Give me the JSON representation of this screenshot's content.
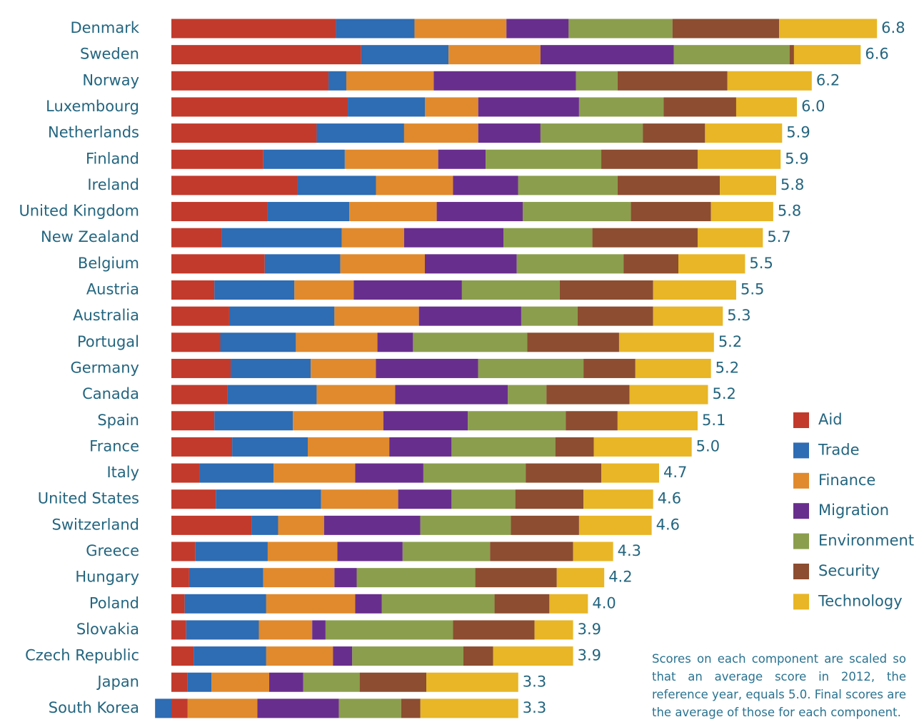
{
  "chart_data": {
    "type": "stacked-bar-horizontal",
    "categories": [
      "Denmark",
      "Sweden",
      "Norway",
      "Luxembourg",
      "Netherlands",
      "Finland",
      "Ireland",
      "United Kingdom",
      "New Zealand",
      "Belgium",
      "Austria",
      "Australia",
      "Portugal",
      "Germany",
      "Canada",
      "Spain",
      "France",
      "Italy",
      "United States",
      "Switzerland",
      "Greece",
      "Hungary",
      "Poland",
      "Slovakia",
      "Czech Republic",
      "Japan",
      "South Korea"
    ],
    "series": [
      {
        "name": "Aid",
        "color": "#c23a2c",
        "values": [
          11.1,
          12.8,
          10.6,
          11.9,
          9.8,
          6.2,
          8.5,
          6.5,
          3.4,
          6.3,
          2.9,
          3.9,
          3.3,
          4.0,
          3.8,
          2.9,
          4.1,
          1.9,
          3.0,
          5.4,
          1.6,
          1.2,
          0.9,
          1.0,
          1.5,
          1.1,
          1.1
        ]
      },
      {
        "name": "Trade",
        "color": "#2e6cb3",
        "values": [
          5.3,
          5.9,
          1.2,
          5.2,
          5.9,
          5.5,
          5.3,
          5.5,
          8.1,
          5.1,
          5.4,
          7.1,
          5.1,
          5.4,
          6.0,
          5.3,
          5.1,
          5.0,
          7.1,
          1.8,
          4.9,
          5.0,
          5.5,
          4.9,
          4.9,
          1.6,
          -1.1
        ]
      },
      {
        "name": "Finance",
        "color": "#e08a2d",
        "values": [
          6.2,
          6.2,
          5.9,
          3.6,
          5.0,
          6.3,
          5.2,
          5.9,
          4.2,
          5.7,
          4.0,
          5.7,
          5.5,
          4.4,
          5.3,
          6.1,
          5.5,
          5.5,
          5.2,
          3.1,
          4.7,
          4.8,
          6.0,
          3.6,
          4.5,
          3.9,
          4.7
        ]
      },
      {
        "name": "Migration",
        "color": "#682e8d",
        "values": [
          4.2,
          9.0,
          9.6,
          6.8,
          4.2,
          3.2,
          4.4,
          5.8,
          6.7,
          6.2,
          7.3,
          6.9,
          2.4,
          6.9,
          7.6,
          5.7,
          4.2,
          4.6,
          3.6,
          6.5,
          4.4,
          1.5,
          1.8,
          0.9,
          1.3,
          2.3,
          5.5
        ]
      },
      {
        "name": "Environment",
        "color": "#8b9e4d",
        "values": [
          7.0,
          7.8,
          2.8,
          5.7,
          6.9,
          7.8,
          6.7,
          7.3,
          6.0,
          7.2,
          6.6,
          3.8,
          7.7,
          7.1,
          2.6,
          6.6,
          7.0,
          6.9,
          4.3,
          6.1,
          5.9,
          8.0,
          7.6,
          8.6,
          7.5,
          3.8,
          4.2
        ]
      },
      {
        "name": "Security",
        "color": "#8c4d30",
        "values": [
          7.2,
          0.3,
          7.4,
          4.9,
          4.2,
          6.5,
          6.9,
          5.4,
          7.1,
          3.7,
          6.3,
          5.1,
          6.2,
          3.5,
          5.6,
          3.5,
          2.6,
          5.1,
          4.6,
          4.6,
          5.6,
          5.5,
          3.7,
          5.5,
          2.0,
          4.5,
          1.3
        ]
      },
      {
        "name": "Technology",
        "color": "#e8b626",
        "values": [
          6.6,
          4.5,
          5.7,
          4.1,
          5.2,
          5.6,
          3.8,
          4.2,
          4.4,
          4.5,
          5.6,
          4.7,
          6.4,
          5.1,
          5.3,
          5.4,
          6.6,
          3.9,
          4.7,
          4.9,
          2.7,
          3.2,
          2.6,
          2.6,
          5.4,
          6.2,
          6.6
        ]
      }
    ],
    "scores": [
      6.8,
      6.6,
      6.2,
      {
        "value": 6.0,
        "label": "6.0"
      },
      5.9,
      5.9,
      5.8,
      5.8,
      5.7,
      5.5,
      5.5,
      5.3,
      5.2,
      5.2,
      5.2,
      5.1,
      {
        "value": 5.0,
        "label": "5.0"
      },
      4.7,
      4.6,
      4.6,
      4.3,
      4.2,
      {
        "value": 4.0,
        "label": "4.0"
      },
      3.9,
      3.9,
      3.3,
      3.3
    ],
    "note": "Scores on each component are scaled so that an average score in 2012, the reference year, equals 5.0. Final scores are the average of those for each component."
  }
}
